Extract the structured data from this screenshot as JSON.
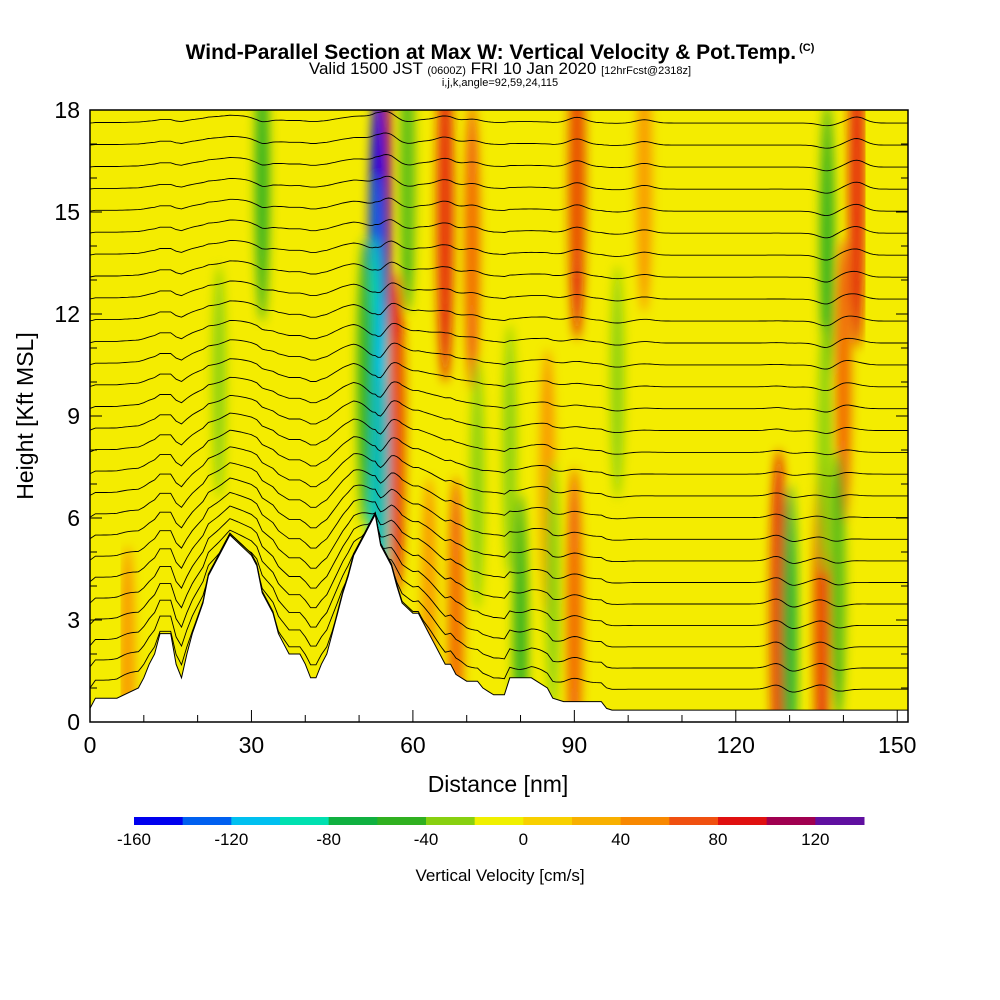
{
  "header": {
    "title": "Wind-Parallel Section at Max W: Vertical Velocity & Pot.Temp.",
    "title_mark": "(C)",
    "valid_prefix": "Valid 1500 JST",
    "valid_zulu": "(0600Z)",
    "valid_date": "FRI 10 Jan 2020",
    "forecast": "[12hrFcst@2318z]",
    "section_params": "i,j,k,angle=92,59,24,115"
  },
  "chart_data": {
    "type": "heatmap",
    "title": "Wind-Parallel Section at Max W: Vertical Velocity & Pot.Temp.",
    "xlabel": "Distance [nm]",
    "ylabel": "Height [Kft MSL]",
    "xlim": [
      0,
      152
    ],
    "ylim": [
      0,
      18
    ],
    "x_ticks": [
      0,
      30,
      60,
      90,
      120,
      150
    ],
    "y_ticks": [
      0,
      3,
      6,
      9,
      12,
      15,
      18
    ],
    "colorbar": {
      "label": "Vertical Velocity [cm/s]",
      "range": [
        -160,
        140
      ],
      "step": 20,
      "tick_values": [
        -160,
        -120,
        -80,
        -40,
        0,
        40,
        80,
        120
      ],
      "colors": [
        "#0000ee",
        "#0060f0",
        "#00c0f0",
        "#00e0b0",
        "#10b040",
        "#30b020",
        "#88d010",
        "#f0f000",
        "#f8d000",
        "#f8b000",
        "#f88800",
        "#f05010",
        "#e01010",
        "#a00050",
        "#6010a0"
      ]
    },
    "terrain_profile": {
      "x": [
        0,
        1,
        5,
        9,
        10,
        11,
        12,
        13,
        15,
        16,
        17,
        18,
        19,
        21,
        22,
        24,
        26,
        28,
        30,
        31,
        32,
        34,
        35,
        36,
        37,
        38,
        39,
        40,
        41,
        42,
        43,
        44,
        45,
        46,
        47,
        48,
        49,
        50,
        51,
        52,
        53,
        54,
        55,
        56,
        57,
        58,
        60,
        61,
        62,
        63,
        64,
        65,
        66,
        67,
        68,
        70,
        72,
        73,
        74,
        75,
        76,
        77,
        78,
        79,
        82,
        85,
        86,
        88,
        90,
        95,
        96,
        97,
        98,
        152
      ],
      "y": [
        0.4,
        0.7,
        0.7,
        1.0,
        1.3,
        1.7,
        2.0,
        2.6,
        2.6,
        1.7,
        1.3,
        2.0,
        2.6,
        3.5,
        4.3,
        4.9,
        5.5,
        5.2,
        4.9,
        4.6,
        3.8,
        3.2,
        2.6,
        2.3,
        2.0,
        2.0,
        2.0,
        1.7,
        1.3,
        1.3,
        1.7,
        2.0,
        2.6,
        3.2,
        3.8,
        4.3,
        4.9,
        5.2,
        5.5,
        5.8,
        6.1,
        5.2,
        4.9,
        4.6,
        4.0,
        3.5,
        3.2,
        3.2,
        2.9,
        2.6,
        2.3,
        2.0,
        1.7,
        1.7,
        1.4,
        1.2,
        1.2,
        1.0,
        0.9,
        0.8,
        0.8,
        0.8,
        1.3,
        1.3,
        1.3,
        1.0,
        0.7,
        0.6,
        0.6,
        0.6,
        0.4,
        0.35,
        0.35,
        0.35
      ]
    },
    "updraft_cores": [
      {
        "x": 54.5,
        "y": 16,
        "value": 110
      },
      {
        "x": 57,
        "y": 8.5,
        "value": 80
      },
      {
        "x": 66,
        "y": 15,
        "value": 90
      },
      {
        "x": 71,
        "y": 14,
        "value": 60
      },
      {
        "x": 90,
        "y": 3,
        "value": 70
      },
      {
        "x": 90.5,
        "y": 16,
        "value": 80
      },
      {
        "x": 103,
        "y": 16,
        "value": 50
      },
      {
        "x": 128,
        "y": 3,
        "value": 90
      },
      {
        "x": 136,
        "y": 3,
        "value": 80
      },
      {
        "x": 140,
        "y": 10,
        "value": 60
      },
      {
        "x": 142.5,
        "y": 16,
        "value": 90
      },
      {
        "x": 68,
        "y": 3,
        "value": 60
      },
      {
        "x": 63,
        "y": 3.5,
        "value": 40
      },
      {
        "x": 7,
        "y": 1.5,
        "value": 40
      },
      {
        "x": 85,
        "y": 7,
        "value": 50
      }
    ],
    "downdraft_cores": [
      {
        "x": 53.5,
        "y": 12,
        "value": -160
      },
      {
        "x": 53,
        "y": 9,
        "value": -100
      },
      {
        "x": 54,
        "y": 7,
        "value": -110
      },
      {
        "x": 51,
        "y": 10,
        "value": -60
      },
      {
        "x": 59,
        "y": 16,
        "value": -50
      },
      {
        "x": 32,
        "y": 16,
        "value": -60
      },
      {
        "x": 80,
        "y": 2.5,
        "value": -60
      },
      {
        "x": 86,
        "y": 4,
        "value": -40
      },
      {
        "x": 72,
        "y": 7,
        "value": -40
      },
      {
        "x": 78,
        "y": 8,
        "value": -40
      },
      {
        "x": 130,
        "y": 2.5,
        "value": -70
      },
      {
        "x": 137,
        "y": 14,
        "value": -60
      },
      {
        "x": 136.5,
        "y": 8,
        "value": -40
      },
      {
        "x": 139,
        "y": 4,
        "value": -50
      },
      {
        "x": 24,
        "y": 10,
        "value": -30
      },
      {
        "x": 98,
        "y": 10,
        "value": -30
      }
    ],
    "isentrope_spacing_kft": 0.65,
    "isentrope_count": 28
  }
}
